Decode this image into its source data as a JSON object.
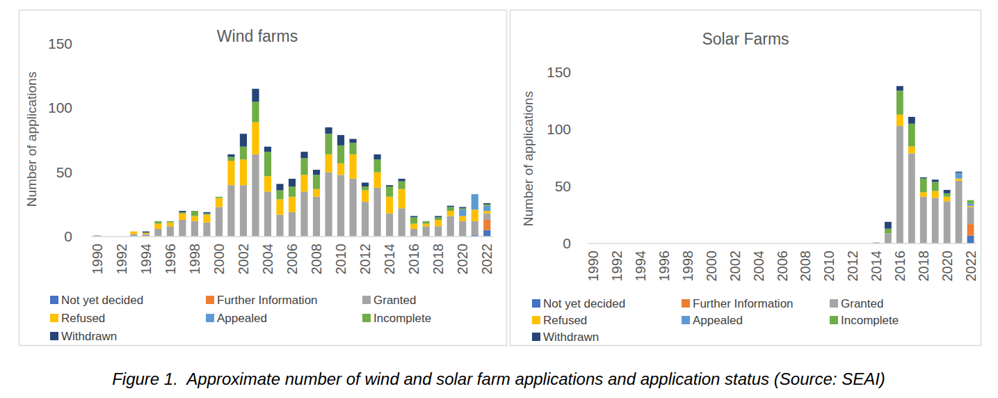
{
  "chart_data": [
    {
      "type": "bar",
      "title": "Wind farms",
      "y_label": "Number of applications",
      "stacked": true,
      "grid": false,
      "legend": "bottom",
      "categories": [
        "1990",
        null,
        "1992",
        null,
        "1994",
        null,
        "1996",
        null,
        "1998",
        null,
        "2000",
        null,
        "2002",
        null,
        "2004",
        null,
        "2006",
        null,
        "2008",
        null,
        "2010",
        null,
        "2012",
        null,
        "2014",
        null,
        "2016",
        null,
        "2018",
        null,
        "2020",
        null,
        "2022"
      ],
      "ylim": [
        0,
        150
      ],
      "yticks": [
        0,
        50,
        100,
        150
      ],
      "series": [
        {
          "name": "Not yet decided",
          "color": "#4472c4",
          "values": [
            0,
            0,
            0,
            0,
            0,
            0,
            0,
            0,
            0,
            0,
            0,
            0,
            0,
            0,
            0,
            0,
            0,
            0,
            0,
            0,
            0,
            0,
            0,
            0,
            0,
            0,
            0,
            0,
            0,
            0,
            0,
            1,
            5
          ]
        },
        {
          "name": "Further Information",
          "color": "#ed7d31",
          "values": [
            0,
            0,
            0,
            0,
            0,
            0,
            0,
            0,
            0,
            0,
            0,
            0,
            0,
            0,
            0,
            0,
            0,
            0,
            0,
            0,
            0,
            0,
            0,
            0,
            0,
            0,
            0,
            0,
            0,
            0,
            0,
            0,
            8
          ]
        },
        {
          "name": "Granted",
          "color": "#a5a5a5",
          "values": [
            1,
            0,
            0,
            2,
            2,
            6,
            8,
            13,
            12,
            11,
            23,
            40,
            40,
            64,
            35,
            17,
            19,
            35,
            31,
            50,
            48,
            45,
            27,
            38,
            18,
            22,
            6,
            8,
            8,
            16,
            12,
            11,
            5
          ]
        },
        {
          "name": "Refused",
          "color": "#ffc000",
          "values": [
            0,
            0,
            0,
            2,
            1,
            4,
            3,
            5,
            4,
            6,
            7,
            19,
            20,
            25,
            12,
            12,
            12,
            13,
            6,
            14,
            9,
            19,
            9,
            12,
            13,
            15,
            4,
            2,
            5,
            4,
            4,
            9,
            2
          ]
        },
        {
          "name": "Appealed",
          "color": "#5b9bd5",
          "values": [
            0,
            0,
            0,
            0,
            0,
            0,
            0,
            0,
            0,
            0,
            0,
            0,
            0,
            0,
            0,
            0,
            0,
            0,
            0,
            0,
            0,
            0,
            0,
            0,
            0,
            0,
            0,
            0,
            0,
            0,
            5,
            12,
            4
          ]
        },
        {
          "name": "Incomplete",
          "color": "#70ad47",
          "values": [
            0,
            0,
            0,
            0,
            0,
            2,
            1,
            1,
            4,
            1,
            1,
            3,
            10,
            16,
            19,
            7,
            8,
            13,
            11,
            16,
            14,
            9,
            3,
            10,
            8,
            6,
            5,
            2,
            2,
            3,
            1,
            0,
            1
          ]
        },
        {
          "name": "Withdrawn",
          "color": "#264478",
          "values": [
            0,
            0,
            0,
            0,
            1,
            0,
            0,
            1,
            0,
            1,
            0,
            2,
            10,
            10,
            4,
            5,
            6,
            5,
            4,
            5,
            8,
            3,
            3,
            4,
            1,
            2,
            1,
            0,
            1,
            1,
            1,
            0,
            1
          ]
        }
      ]
    },
    {
      "type": "bar",
      "title": "Solar Farms",
      "y_label": "Number of applications",
      "stacked": true,
      "grid": false,
      "legend": "bottom",
      "categories": [
        "1990",
        null,
        "1992",
        null,
        "1994",
        null,
        "1996",
        null,
        "1998",
        null,
        "2000",
        null,
        "2002",
        null,
        "2004",
        null,
        "2006",
        null,
        "2008",
        null,
        "2010",
        null,
        "2012",
        null,
        "2014",
        null,
        "2016",
        null,
        "2018",
        null,
        "2020",
        null,
        "2022"
      ],
      "ylim": [
        0,
        150
      ],
      "yticks": [
        0,
        50,
        100,
        150
      ],
      "series": [
        {
          "name": "Not yet decided",
          "color": "#4472c4",
          "values": [
            0,
            0,
            0,
            0,
            0,
            0,
            0,
            0,
            0,
            0,
            0,
            0,
            0,
            0,
            0,
            0,
            0,
            0,
            0,
            0,
            0,
            0,
            0,
            0,
            0,
            0,
            0,
            0,
            0,
            0,
            0,
            0,
            7
          ]
        },
        {
          "name": "Further Information",
          "color": "#ed7d31",
          "values": [
            0,
            0,
            0,
            0,
            0,
            0,
            0,
            0,
            0,
            0,
            0,
            0,
            0,
            0,
            0,
            0,
            0,
            0,
            0,
            0,
            0,
            0,
            0,
            0,
            0,
            0,
            0,
            0,
            0,
            0,
            0,
            0,
            10
          ]
        },
        {
          "name": "Granted",
          "color": "#a5a5a5",
          "values": [
            0,
            0,
            0,
            0,
            0,
            0,
            0,
            0,
            0,
            0,
            0,
            0,
            0,
            0,
            0,
            0,
            0,
            0,
            0,
            0,
            0,
            0,
            0,
            0,
            1,
            9,
            103,
            79,
            41,
            40,
            37,
            55,
            15
          ]
        },
        {
          "name": "Refused",
          "color": "#ffc000",
          "values": [
            0,
            0,
            0,
            0,
            0,
            0,
            0,
            0,
            0,
            0,
            0,
            0,
            0,
            0,
            0,
            0,
            0,
            0,
            0,
            0,
            0,
            0,
            0,
            0,
            0,
            0,
            10,
            6,
            4,
            6,
            4,
            2,
            1
          ]
        },
        {
          "name": "Appealed",
          "color": "#5b9bd5",
          "values": [
            0,
            0,
            0,
            0,
            0,
            0,
            0,
            0,
            0,
            0,
            0,
            0,
            0,
            0,
            0,
            0,
            0,
            0,
            0,
            0,
            0,
            0,
            0,
            0,
            0,
            0,
            0,
            0,
            0,
            0,
            0,
            5,
            2
          ]
        },
        {
          "name": "Incomplete",
          "color": "#70ad47",
          "values": [
            0,
            0,
            0,
            0,
            0,
            0,
            0,
            0,
            0,
            0,
            0,
            0,
            0,
            0,
            0,
            0,
            0,
            0,
            0,
            0,
            0,
            0,
            0,
            0,
            0,
            4,
            21,
            20,
            12,
            8,
            3,
            0,
            3
          ]
        },
        {
          "name": "Withdrawn",
          "color": "#264478",
          "values": [
            0,
            0,
            0,
            0,
            0,
            0,
            0,
            0,
            0,
            0,
            0,
            0,
            0,
            0,
            0,
            0,
            0,
            0,
            0,
            0,
            0,
            0,
            0,
            0,
            0,
            6,
            4,
            6,
            1,
            2,
            3,
            1,
            0
          ]
        }
      ]
    }
  ],
  "caption": "Figure 1.  Approximate number of wind and solar farm applications and application status (Source: SEAI)"
}
